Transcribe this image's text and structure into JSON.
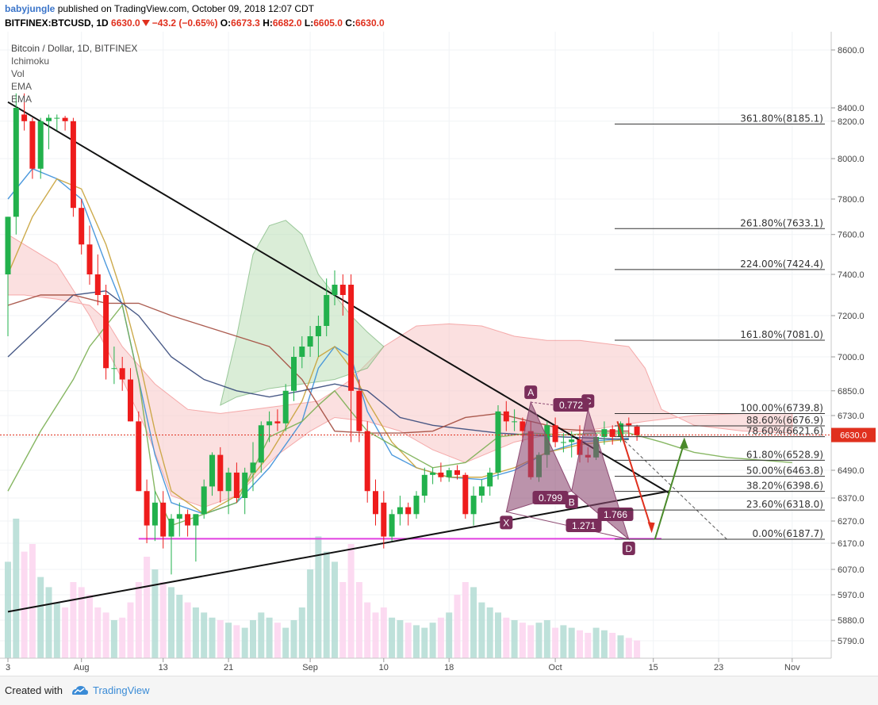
{
  "header": {
    "author": "babyjungle",
    "published": "published on TradingView.com, October 09, 2018 12:07 CDT",
    "symbol": "BITFINEX:BTCUSD, 1D",
    "last": "6630.0",
    "change": "−43.2 (−0.65%)",
    "open_label": "O:",
    "open": "6673.3",
    "high_label": "H:",
    "high": "6682.0",
    "low_label": "L:",
    "low": "6605.0",
    "close_label": "C:",
    "close": "6630.0"
  },
  "legend": {
    "title": "Bitcoin / Dollar, 1D, BITFINEX",
    "indicators": [
      "Ichimoku",
      "Vol",
      "EMA",
      "EMA"
    ]
  },
  "footer": {
    "created_with": "Created with",
    "brand": "TradingView"
  },
  "colors": {
    "up": "#22b14c",
    "down": "#ee1c1c",
    "fib_line": "#333333",
    "harmonic": "#8e4b73",
    "horizontal": "#e040e0",
    "price_tag": "#e0301e"
  },
  "chart_data": {
    "type": "candlestick",
    "title": "Bitcoin / Dollar, 1D, BITFINEX",
    "ylim": [
      5720,
      8680
    ],
    "y_ticks": [
      "8600.0",
      "8400.0",
      "8200.0",
      "8000.0",
      "7800.0",
      "7600.0",
      "7400.0",
      "7200.0",
      "7000.0",
      "6850.0",
      "6730.0",
      "6620.0",
      "6490.0",
      "6370.0",
      "6270.0",
      "6170.0",
      "6070.0",
      "5970.0",
      "5880.0",
      "5790.0"
    ],
    "x_ticks": [
      {
        "label": "3",
        "day": 0
      },
      {
        "label": "Aug",
        "day": 9
      },
      {
        "label": "13",
        "day": 19
      },
      {
        "label": "21",
        "day": 27
      },
      {
        "label": "Sep",
        "day": 37
      },
      {
        "label": "10",
        "day": 46
      },
      {
        "label": "18",
        "day": 54
      },
      {
        "label": "Oct",
        "day": 67
      },
      {
        "label": "15",
        "day": 79
      },
      {
        "label": "23",
        "day": 87
      },
      {
        "label": "Nov",
        "day": 96
      }
    ],
    "current_price": {
      "label": "6630.0",
      "value": 6630
    },
    "fib_levels": [
      {
        "label": "361.80%(8185.1)",
        "value": 8185.1
      },
      {
        "label": "261.80%(7633.1)",
        "value": 7633.1
      },
      {
        "label": "224.00%(7424.4)",
        "value": 7424.4
      },
      {
        "label": "161.80%(7081.0)",
        "value": 7081.0
      },
      {
        "label": "100.00%(6739.8)",
        "value": 6739.8
      },
      {
        "label": "88.60%(6676.9)",
        "value": 6676.9
      },
      {
        "label": "78.60%(6621.6)",
        "value": 6621.6
      },
      {
        "label": "61.80%(6528.9)",
        "value": 6528.9
      },
      {
        "label": "50.00%(6463.8)",
        "value": 6463.8
      },
      {
        "label": "38.20%(6398.6)",
        "value": 6398.6
      },
      {
        "label": "23.60%(6318.0)",
        "value": 6318.0
      },
      {
        "label": "0.00%(6187.7)",
        "value": 6187.7
      }
    ],
    "harmonic_points": [
      {
        "label": "X",
        "day": 61,
        "value": 6310
      },
      {
        "label": "A",
        "day": 64,
        "value": 6795
      },
      {
        "label": "B",
        "day": 69,
        "value": 6400
      },
      {
        "label": "C",
        "day": 71,
        "value": 6760
      },
      {
        "label": "D",
        "day": 76,
        "value": 6188
      }
    ],
    "harmonic_ratios": [
      "0.772",
      "0.799",
      "1.271",
      "1.766"
    ],
    "trendlines": [
      {
        "from": {
          "day": 0,
          "value": 8420
        },
        "to": {
          "day": 81,
          "value": 6390
        }
      },
      {
        "from": {
          "day": 0,
          "value": 5910
        },
        "to": {
          "day": 81,
          "value": 6400
        }
      }
    ],
    "support_level": 6190,
    "candles": [
      {
        "o": 7400,
        "h": 7700,
        "l": 7100,
        "c": 7700
      },
      {
        "o": 7700,
        "h": 8450,
        "l": 7600,
        "c": 8400
      },
      {
        "o": 8300,
        "h": 8450,
        "l": 8150,
        "c": 8200
      },
      {
        "o": 8200,
        "h": 8250,
        "l": 7900,
        "c": 7950
      },
      {
        "o": 7950,
        "h": 8250,
        "l": 7900,
        "c": 8200
      },
      {
        "o": 8200,
        "h": 8300,
        "l": 8050,
        "c": 8250
      },
      {
        "o": 8250,
        "h": 8300,
        "l": 8150,
        "c": 8250
      },
      {
        "o": 8250,
        "h": 8280,
        "l": 8150,
        "c": 8200
      },
      {
        "o": 8200,
        "h": 8250,
        "l": 7700,
        "c": 7750
      },
      {
        "o": 7750,
        "h": 7800,
        "l": 7500,
        "c": 7550
      },
      {
        "o": 7550,
        "h": 7650,
        "l": 7350,
        "c": 7400
      },
      {
        "o": 7400,
        "h": 7500,
        "l": 7250,
        "c": 7300
      },
      {
        "o": 7300,
        "h": 7350,
        "l": 6900,
        "c": 6950
      },
      {
        "o": 6950,
        "h": 7050,
        "l": 6880,
        "c": 6950
      },
      {
        "o": 6950,
        "h": 7000,
        "l": 6850,
        "c": 6900
      },
      {
        "o": 6900,
        "h": 6950,
        "l": 6700,
        "c": 6700
      },
      {
        "o": 6700,
        "h": 6750,
        "l": 6400,
        "c": 6400
      },
      {
        "o": 6400,
        "h": 6450,
        "l": 6170,
        "c": 6250
      },
      {
        "o": 6250,
        "h": 6400,
        "l": 6180,
        "c": 6350
      },
      {
        "o": 6350,
        "h": 6400,
        "l": 6150,
        "c": 6200
      },
      {
        "o": 6200,
        "h": 6300,
        "l": 6050,
        "c": 6280
      },
      {
        "o": 6280,
        "h": 6350,
        "l": 6200,
        "c": 6300
      },
      {
        "o": 6300,
        "h": 6320,
        "l": 6200,
        "c": 6250
      },
      {
        "o": 6250,
        "h": 6300,
        "l": 6100,
        "c": 6300
      },
      {
        "o": 6300,
        "h": 6450,
        "l": 6280,
        "c": 6420
      },
      {
        "o": 6420,
        "h": 6560,
        "l": 6380,
        "c": 6550
      },
      {
        "o": 6550,
        "h": 6580,
        "l": 6350,
        "c": 6400
      },
      {
        "o": 6400,
        "h": 6500,
        "l": 6300,
        "c": 6480
      },
      {
        "o": 6480,
        "h": 6520,
        "l": 6350,
        "c": 6370
      },
      {
        "o": 6370,
        "h": 6500,
        "l": 6300,
        "c": 6480
      },
      {
        "o": 6480,
        "h": 6600,
        "l": 6400,
        "c": 6520
      },
      {
        "o": 6520,
        "h": 6700,
        "l": 6480,
        "c": 6680
      },
      {
        "o": 6680,
        "h": 6750,
        "l": 6600,
        "c": 6700
      },
      {
        "o": 6700,
        "h": 6760,
        "l": 6650,
        "c": 6690
      },
      {
        "o": 6690,
        "h": 6880,
        "l": 6650,
        "c": 6850
      },
      {
        "o": 6850,
        "h": 7050,
        "l": 6800,
        "c": 7000
      },
      {
        "o": 7000,
        "h": 7100,
        "l": 6950,
        "c": 7050
      },
      {
        "o": 7050,
        "h": 7150,
        "l": 7000,
        "c": 7100
      },
      {
        "o": 7100,
        "h": 7200,
        "l": 7000,
        "c": 7150
      },
      {
        "o": 7150,
        "h": 7380,
        "l": 7100,
        "c": 7300
      },
      {
        "o": 7300,
        "h": 7420,
        "l": 7250,
        "c": 7350
      },
      {
        "o": 7350,
        "h": 7400,
        "l": 7200,
        "c": 7300
      },
      {
        "o": 7350,
        "h": 7400,
        "l": 6600,
        "c": 6850
      },
      {
        "o": 6850,
        "h": 6900,
        "l": 6600,
        "c": 6650
      },
      {
        "o": 6650,
        "h": 6700,
        "l": 6350,
        "c": 6400
      },
      {
        "o": 6400,
        "h": 6450,
        "l": 6250,
        "c": 6300
      },
      {
        "o": 6350,
        "h": 6400,
        "l": 6150,
        "c": 6200
      },
      {
        "o": 6200,
        "h": 6320,
        "l": 6180,
        "c": 6300
      },
      {
        "o": 6300,
        "h": 6380,
        "l": 6250,
        "c": 6330
      },
      {
        "o": 6330,
        "h": 6350,
        "l": 6250,
        "c": 6300
      },
      {
        "o": 6300,
        "h": 6400,
        "l": 6280,
        "c": 6380
      },
      {
        "o": 6380,
        "h": 6500,
        "l": 6350,
        "c": 6470
      },
      {
        "o": 6470,
        "h": 6500,
        "l": 6430,
        "c": 6480
      },
      {
        "o": 6480,
        "h": 6520,
        "l": 6440,
        "c": 6460
      },
      {
        "o": 6460,
        "h": 6500,
        "l": 6440,
        "c": 6490
      },
      {
        "o": 6490,
        "h": 6510,
        "l": 6450,
        "c": 6470
      },
      {
        "o": 6470,
        "h": 6480,
        "l": 6280,
        "c": 6300
      },
      {
        "o": 6300,
        "h": 6420,
        "l": 6250,
        "c": 6380
      },
      {
        "o": 6380,
        "h": 6450,
        "l": 6350,
        "c": 6420
      },
      {
        "o": 6420,
        "h": 6500,
        "l": 6380,
        "c": 6480
      },
      {
        "o": 6480,
        "h": 6780,
        "l": 6450,
        "c": 6750
      },
      {
        "o": 6750,
        "h": 6800,
        "l": 6650,
        "c": 6700
      },
      {
        "o": 6700,
        "h": 6760,
        "l": 6650,
        "c": 6700
      },
      {
        "o": 6700,
        "h": 6720,
        "l": 6600,
        "c": 6650
      },
      {
        "o": 6650,
        "h": 6700,
        "l": 6450,
        "c": 6460
      },
      {
        "o": 6460,
        "h": 6560,
        "l": 6440,
        "c": 6550
      },
      {
        "o": 6550,
        "h": 6700,
        "l": 6500,
        "c": 6680
      },
      {
        "o": 6680,
        "h": 6720,
        "l": 6580,
        "c": 6600
      },
      {
        "o": 6600,
        "h": 6640,
        "l": 6560,
        "c": 6600
      },
      {
        "o": 6600,
        "h": 6650,
        "l": 6540,
        "c": 6610
      },
      {
        "o": 6610,
        "h": 6680,
        "l": 6520,
        "c": 6550
      },
      {
        "o": 6550,
        "h": 6580,
        "l": 6520,
        "c": 6540
      },
      {
        "o": 6540,
        "h": 6640,
        "l": 6530,
        "c": 6620
      },
      {
        "o": 6620,
        "h": 6700,
        "l": 6590,
        "c": 6660
      },
      {
        "o": 6660,
        "h": 6680,
        "l": 6590,
        "c": 6620
      },
      {
        "o": 6620,
        "h": 6700,
        "l": 6600,
        "c": 6690
      },
      {
        "o": 6690,
        "h": 6720,
        "l": 6620,
        "c": 6680
      },
      {
        "o": 6673.3,
        "h": 6682,
        "l": 6605,
        "c": 6630
      }
    ],
    "volumes": [
      38,
      55,
      42,
      45,
      32,
      28,
      22,
      20,
      30,
      28,
      25,
      20,
      18,
      15,
      16,
      22,
      30,
      40,
      35,
      30,
      28,
      25,
      22,
      20,
      18,
      16,
      15,
      14,
      13,
      12,
      15,
      18,
      16,
      14,
      12,
      15,
      20,
      35,
      48,
      42,
      38,
      30,
      45,
      30,
      22,
      18,
      20,
      16,
      15,
      14,
      13,
      12,
      14,
      16,
      18,
      25,
      30,
      28,
      22,
      20,
      18,
      16,
      15,
      14,
      13,
      14,
      15,
      12,
      13,
      12,
      11,
      10,
      12,
      11,
      10,
      9,
      8,
      7
    ]
  }
}
